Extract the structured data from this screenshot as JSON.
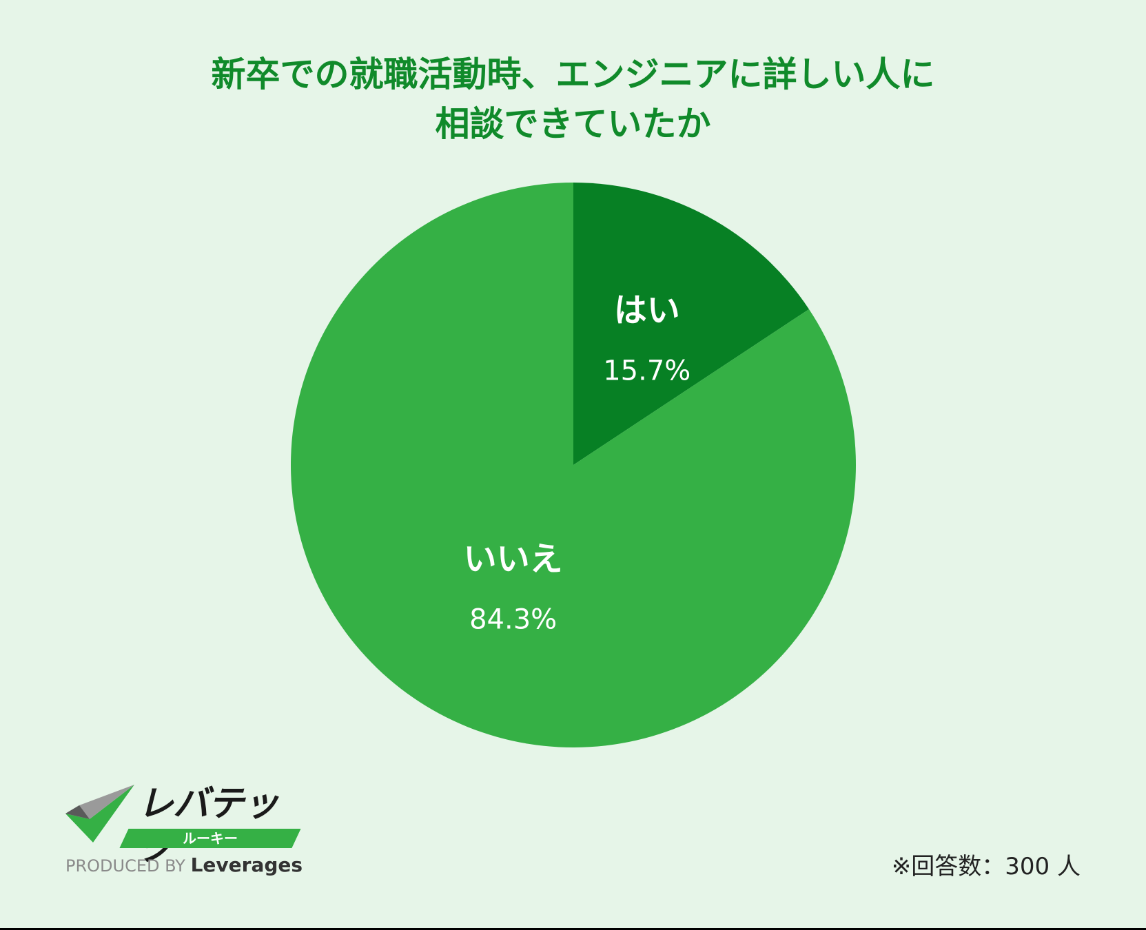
{
  "title_lines": [
    "新卒での就職活動時、エンジニアに詳しい人に",
    "相談できていたか"
  ],
  "chart_data": {
    "type": "pie",
    "title": "新卒での就職活動時、エンジニアに詳しい人に相談できていたか",
    "start_angle_deg": 0,
    "direction": "clockwise",
    "slices": [
      {
        "label": "はい",
        "value": 15.7,
        "value_label": "15.7%",
        "color": "#078024"
      },
      {
        "label": "いいえ",
        "value": 84.3,
        "value_label": "84.3%",
        "color": "#35b045"
      }
    ]
  },
  "brand": {
    "name": "レバテック",
    "sub": "ルーキー",
    "produced_by": "PRODUCED BY",
    "company": "Leverages",
    "colors": {
      "green": "#35b045",
      "dark": "#1a1a1a",
      "gray": "#8a8a8a"
    }
  },
  "note": "※回答数：300 人",
  "colors": {
    "background": "#e6f5e8",
    "title": "#108a2a"
  }
}
